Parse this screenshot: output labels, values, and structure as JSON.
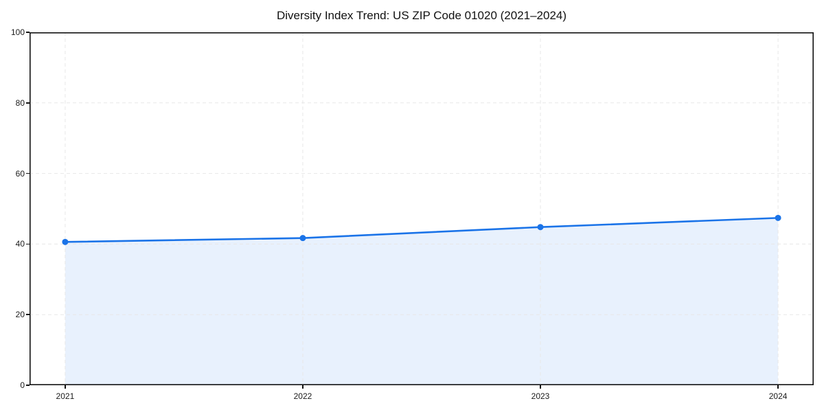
{
  "chart_data": {
    "type": "area",
    "title": "Diversity Index Trend: US ZIP Code 01020 (2021–2024)",
    "categories": [
      "2021",
      "2022",
      "2023",
      "2024"
    ],
    "x": [
      2021,
      2022,
      2023,
      2024
    ],
    "series": [
      {
        "name": "Diversity Index",
        "values": [
          40.6,
          41.7,
          44.8,
          47.4
        ]
      }
    ],
    "xlabel": "",
    "ylabel": "",
    "xlim": [
      2020.85,
      2024.15
    ],
    "ylim": [
      0,
      100
    ],
    "yticks": [
      0,
      20,
      40,
      60,
      80,
      100
    ],
    "grid": "dashed",
    "legend": "none",
    "colors": {
      "line": "#1a73e8",
      "marker": "#1a73e8",
      "fill": "#1a73e8",
      "fill_opacity": 0.1,
      "gridline": "#e7e7e7",
      "spine": "#111111",
      "tick_text": "#1a1a1a",
      "background": "#ffffff"
    }
  }
}
